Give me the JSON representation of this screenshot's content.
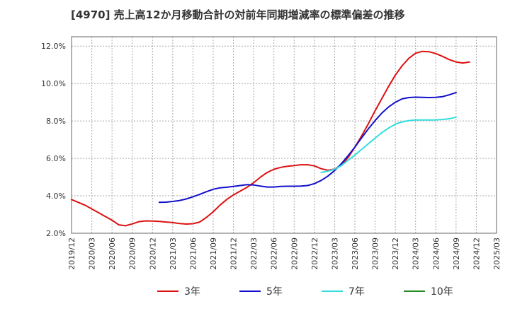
{
  "chart_data": {
    "type": "line",
    "title": "[4970]  売上高12か月移動合計の対前年同期増減率の標準偏差の推移",
    "xlabel": "",
    "ylabel": "",
    "x_ticks": [
      "2019/12",
      "2020/03",
      "2020/06",
      "2020/09",
      "2020/12",
      "2021/03",
      "2021/06",
      "2021/09",
      "2021/12",
      "2022/03",
      "2022/06",
      "2022/09",
      "2022/12",
      "2023/03",
      "2023/06",
      "2023/09",
      "2023/12",
      "2024/03",
      "2024/06",
      "2024/09",
      "2024/12",
      "2025/03"
    ],
    "y_ticks": [
      "2.0%",
      "4.0%",
      "6.0%",
      "8.0%",
      "10.0%",
      "12.0%"
    ],
    "ylim": [
      2.0,
      12.5
    ],
    "grid": true,
    "legend_position": "bottom",
    "series": [
      {
        "name": "3年",
        "color": "#dd1111",
        "start": "2019/12",
        "values": [
          3.8,
          3.65,
          3.5,
          3.3,
          3.1,
          2.9,
          2.7,
          2.45,
          2.4,
          2.5,
          2.62,
          2.66,
          2.65,
          2.63,
          2.6,
          2.57,
          2.52,
          2.49,
          2.51,
          2.6,
          2.85,
          3.15,
          3.5,
          3.8,
          4.05,
          4.25,
          4.45,
          4.7,
          5.0,
          5.25,
          5.42,
          5.52,
          5.58,
          5.62,
          5.66,
          5.66,
          5.6,
          5.45,
          5.37,
          5.43,
          5.65,
          6.05,
          6.6,
          7.2,
          7.85,
          8.55,
          9.2,
          9.85,
          10.45,
          10.95,
          11.35,
          11.62,
          11.72,
          11.7,
          11.6,
          11.45,
          11.28,
          11.15,
          11.1,
          11.15
        ]
      },
      {
        "name": "5年",
        "color": "#1111cc",
        "start": "2021/01",
        "values": [
          3.65,
          3.66,
          3.7,
          3.75,
          3.83,
          3.95,
          4.08,
          4.22,
          4.35,
          4.43,
          4.46,
          4.5,
          4.55,
          4.6,
          4.58,
          4.52,
          4.47,
          4.47,
          4.5,
          4.51,
          4.51,
          4.52,
          4.55,
          4.65,
          4.82,
          5.05,
          5.35,
          5.72,
          6.15,
          6.6,
          7.1,
          7.58,
          8.02,
          8.42,
          8.75,
          9.0,
          9.18,
          9.25,
          9.27,
          9.26,
          9.25,
          9.26,
          9.3,
          9.4,
          9.52
        ]
      },
      {
        "name": "7年",
        "color": "#33dddd",
        "start": "2023/01",
        "values": [
          5.25,
          5.32,
          5.42,
          5.62,
          5.9,
          6.18,
          6.48,
          6.78,
          7.08,
          7.38,
          7.62,
          7.83,
          7.95,
          8.02,
          8.05,
          8.05,
          8.05,
          8.06,
          8.08,
          8.12,
          8.2
        ]
      },
      {
        "name": "10年",
        "color": "#228822",
        "start": "",
        "values": []
      }
    ]
  }
}
